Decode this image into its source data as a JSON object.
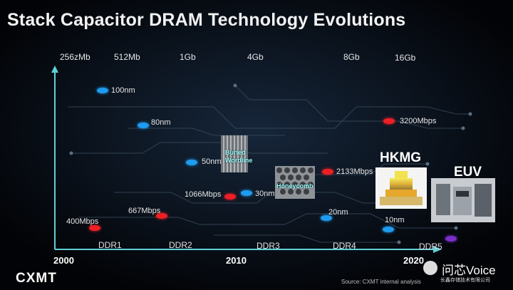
{
  "title": "Stack Capacitor DRAM Technology Evolutions",
  "capacities": [
    "256zMb",
    "512Mb",
    "1Gb",
    "4Gb",
    "8Gb",
    "16Gb"
  ],
  "node_labels": {
    "n100": "100nm",
    "n80": "80nm",
    "n50": "50nm",
    "n30": "30nm",
    "n20": "20nm",
    "n10": "10nm"
  },
  "speed_labels": {
    "s400": "400Mbps",
    "s667": "667Mbps",
    "s1066": "1066Mbps",
    "s2133": "2133Mbps",
    "s3200": "3200Mbps"
  },
  "technologies": {
    "buried_wordline": "Buried Wordline",
    "honeycomb": "Honeycomb",
    "hkmg": "HKMG",
    "euv": "EUV"
  },
  "ddr_generations": [
    "DDR1",
    "DDR2",
    "DDR3",
    "DDR4",
    "DDR5"
  ],
  "years": [
    "2000",
    "2010",
    "2020"
  ],
  "logo": "CXMT",
  "source": "Source:  CXMT internal analysis",
  "watermark": {
    "name": "问芯Voice",
    "sub": "长鑫存储技术有限公司"
  },
  "colors": {
    "node_dot": "#1e9cf0",
    "speed_dot": "#ee1f25",
    "future_dot": "#7a2ec8",
    "axis": "#5fd0d8"
  }
}
